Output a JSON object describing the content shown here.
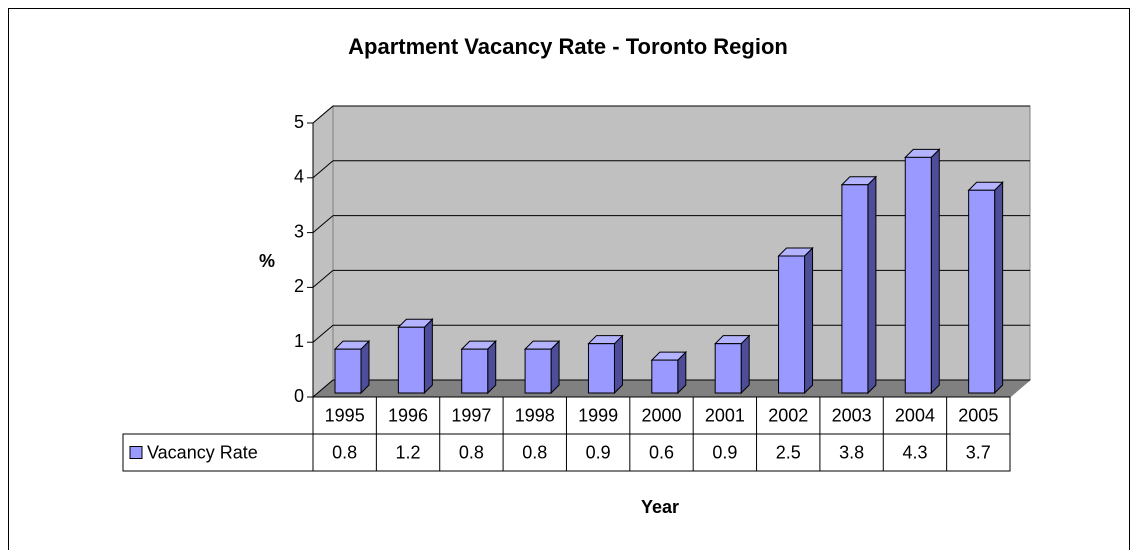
{
  "chart_data": {
    "type": "bar",
    "title": "Apartment Vacancy Rate - Toronto Region",
    "xlabel": "Year",
    "ylabel": "%",
    "categories": [
      "1995",
      "1996",
      "1997",
      "1998",
      "1999",
      "2000",
      "2001",
      "2002",
      "2003",
      "2004",
      "2005"
    ],
    "series": [
      {
        "name": "Vacancy Rate",
        "color": "#9999ff",
        "values": [
          0.8,
          1.2,
          0.8,
          0.8,
          0.9,
          0.6,
          0.9,
          2.5,
          3.8,
          4.3,
          3.7
        ]
      }
    ],
    "ylim": [
      0,
      5
    ],
    "yticks": [
      0,
      1,
      2,
      3,
      4,
      5
    ],
    "grid": true
  }
}
